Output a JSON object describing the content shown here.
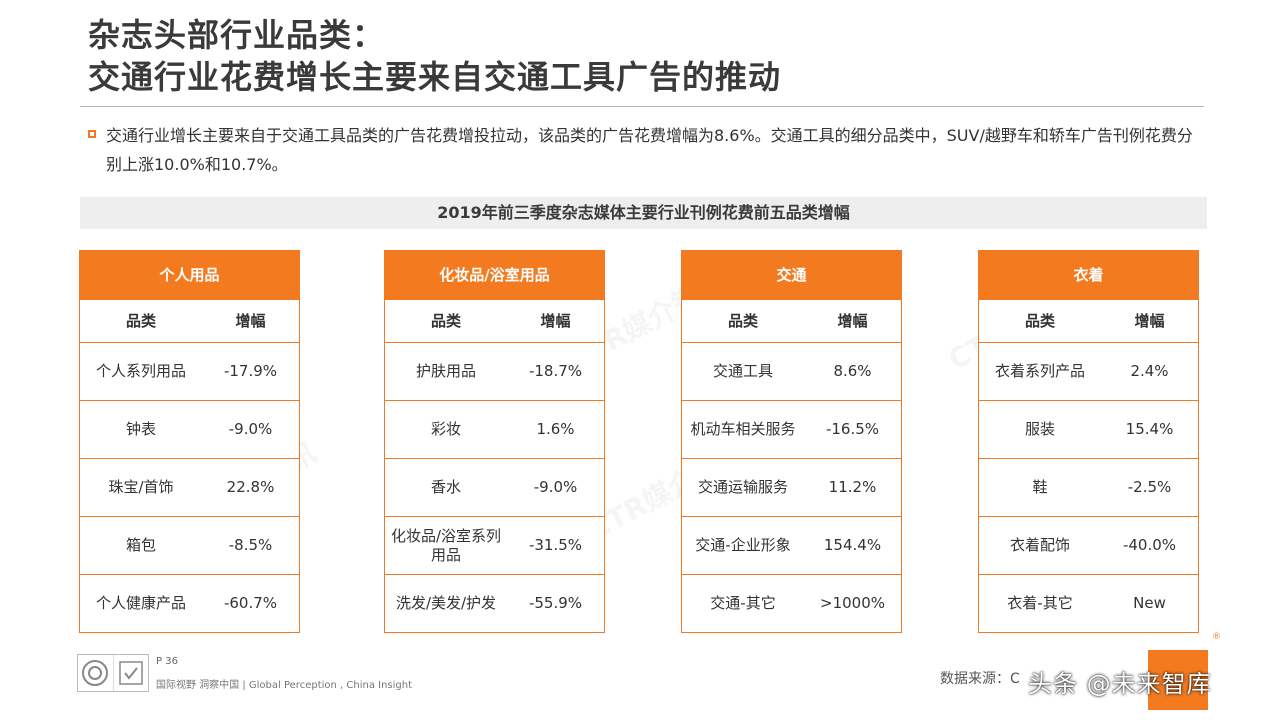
{
  "title": {
    "line1": "杂志头部行业品类：",
    "line2": "交通行业花费增长主要来自交通工具广告的推动"
  },
  "description": "交通行业增长主要来自于交通工具品类的广告花费增投拉动，该品类的广告花费增幅为8.6%。交通工具的细分品类中，SUV/越野车和轿车广告刊例花费分别上涨10.0%和10.7%。",
  "banner": "2019年前三季度杂志媒体主要行业刊例花费前五品类增幅",
  "column_headers": {
    "category": "品类",
    "growth": "增幅"
  },
  "cards": [
    {
      "title": "个人用品",
      "rows": [
        {
          "category": "个人系列用品",
          "growth": "-17.9%"
        },
        {
          "category": "钟表",
          "growth": "-9.0%"
        },
        {
          "category": "珠宝/首饰",
          "growth": "22.8%"
        },
        {
          "category": "箱包",
          "growth": "-8.5%"
        },
        {
          "category": "个人健康产品",
          "growth": "-60.7%"
        }
      ]
    },
    {
      "title": "化妆品/浴室用品",
      "rows": [
        {
          "category": "护肤用品",
          "growth": "-18.7%"
        },
        {
          "category": "彩妆",
          "growth": "1.6%"
        },
        {
          "category": "香水",
          "growth": "-9.0%"
        },
        {
          "category": "化妆品/浴室系列用品",
          "growth": "-31.5%"
        },
        {
          "category": "洗发/美发/护发",
          "growth": "-55.9%"
        }
      ]
    },
    {
      "title": "交通",
      "rows": [
        {
          "category": "交通工具",
          "growth": "8.6%"
        },
        {
          "category": "机动车相关服务",
          "growth": "-16.5%"
        },
        {
          "category": "交通运输服务",
          "growth": "11.2%"
        },
        {
          "category": "交通-企业形象",
          "growth": "154.4%"
        },
        {
          "category": "交通-其它",
          "growth": ">1000%"
        }
      ]
    },
    {
      "title": "衣着",
      "rows": [
        {
          "category": "衣着系列产品",
          "growth": "2.4%"
        },
        {
          "category": "服装",
          "growth": "15.4%"
        },
        {
          "category": "鞋",
          "growth": "-2.5%"
        },
        {
          "category": "衣着配饰",
          "growth": "-40.0%"
        },
        {
          "category": "衣着-其它",
          "growth": "New"
        }
      ]
    }
  ],
  "watermark_text": "CTR媒介智讯",
  "footer": {
    "page": "P 36",
    "slogan": "国际视野  洞察中国 | Global Perception , China Insight",
    "source": "数据来源：C",
    "overlay": "头条 @未来智库",
    "reg_mark": "®"
  },
  "colors": {
    "accent": "#f47a20",
    "banner_bg": "#eeeeee",
    "title": "#3a3a3a"
  }
}
